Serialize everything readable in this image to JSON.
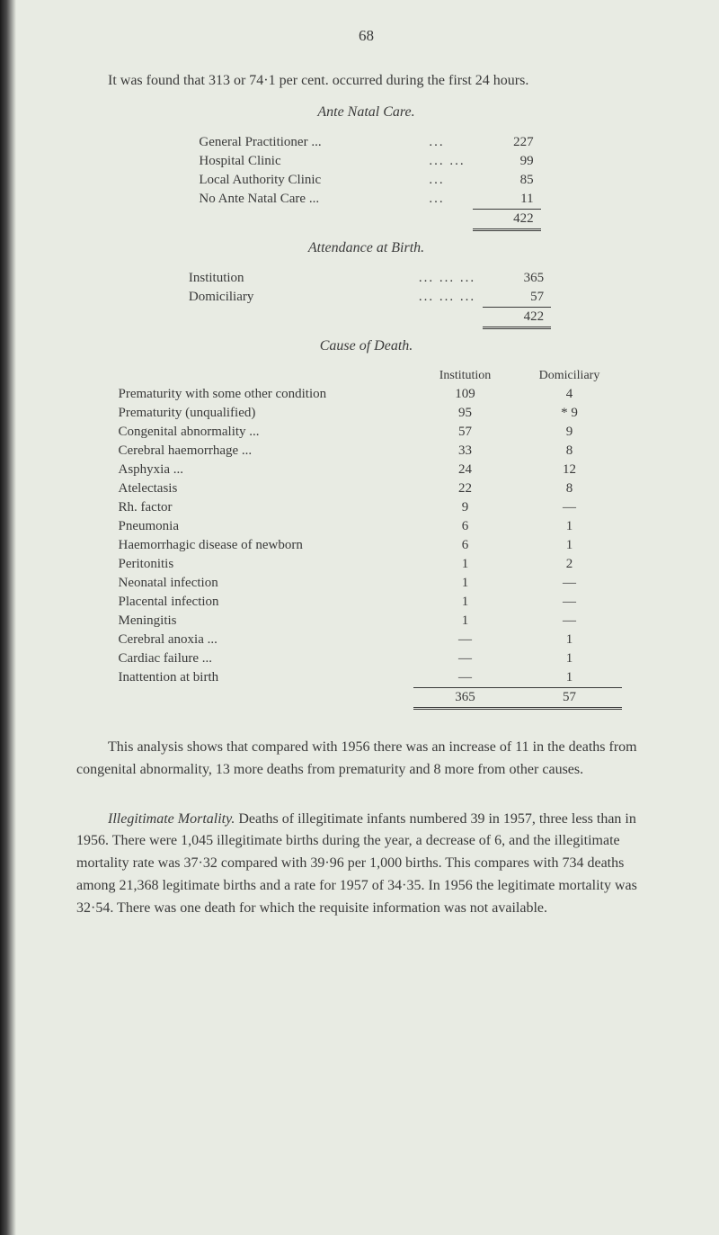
{
  "page_number": "68",
  "intro_text": "It was found that 313 or 74·1 per cent. occurred during the first 24 hours.",
  "ante_natal": {
    "title": "Ante Natal Care.",
    "rows": [
      {
        "label": "General Practitioner ...",
        "value": "227"
      },
      {
        "label": "Hospital Clinic",
        "value": "99"
      },
      {
        "label": "Local Authority Clinic",
        "value": "85"
      },
      {
        "label": "No Ante Natal Care ...",
        "value": "11"
      }
    ],
    "total": "422"
  },
  "attendance": {
    "title": "Attendance at Birth.",
    "rows": [
      {
        "label": "Institution",
        "value": "365"
      },
      {
        "label": "Domiciliary",
        "value": "57"
      }
    ],
    "total": "422"
  },
  "cause": {
    "title": "Cause of Death.",
    "header_inst": "Institution",
    "header_dom": "Domiciliary",
    "rows": [
      {
        "label": "Prematurity with some other condition",
        "inst": "109",
        "dom": "4"
      },
      {
        "label": "Prematurity (unqualified)",
        "inst": "95",
        "dom": "* 9"
      },
      {
        "label": "Congenital abnormality ...",
        "inst": "57",
        "dom": "9"
      },
      {
        "label": "Cerebral haemorrhage ...",
        "inst": "33",
        "dom": "8"
      },
      {
        "label": "Asphyxia ...",
        "inst": "24",
        "dom": "12"
      },
      {
        "label": "Atelectasis",
        "inst": "22",
        "dom": "8"
      },
      {
        "label": "Rh. factor",
        "inst": "9",
        "dom": "—"
      },
      {
        "label": "Pneumonia",
        "inst": "6",
        "dom": "1"
      },
      {
        "label": "Haemorrhagic disease of newborn",
        "inst": "6",
        "dom": "1"
      },
      {
        "label": "Peritonitis",
        "inst": "1",
        "dom": "2"
      },
      {
        "label": "Neonatal infection",
        "inst": "1",
        "dom": "—"
      },
      {
        "label": "Placental infection",
        "inst": "1",
        "dom": "—"
      },
      {
        "label": "Meningitis",
        "inst": "1",
        "dom": "—"
      },
      {
        "label": "Cerebral anoxia ...",
        "inst": "—",
        "dom": "1"
      },
      {
        "label": "Cardiac failure ...",
        "inst": "—",
        "dom": "1"
      },
      {
        "label": "Inattention at birth",
        "inst": "—",
        "dom": "1"
      }
    ],
    "total_inst": "365",
    "total_dom": "57"
  },
  "para_analysis": "This analysis shows that compared with 1956 there was an increase of 11 in the deaths from congenital abnormality, 13 more deaths from prematurity and 8 more from other causes.",
  "para_illeg_label": "Illegitimate Mortality.",
  "para_illeg_text": "  Deaths of illegitimate infants numbered 39 in 1957, three less than in 1956. There were 1,045 illegitimate births during the year, a decrease of 6, and the illegitimate mortality rate was 37·32 compared with 39·96 per 1,000 births. This compares with 734 deaths among 21,368 legitimate births and a rate for 1957 of 34·35. In 1956 the legitimate mortality was 32·54. There was one death for which the requisite information was not available.",
  "colors": {
    "background": "#e8ebe3",
    "text": "#3a3a3a"
  }
}
